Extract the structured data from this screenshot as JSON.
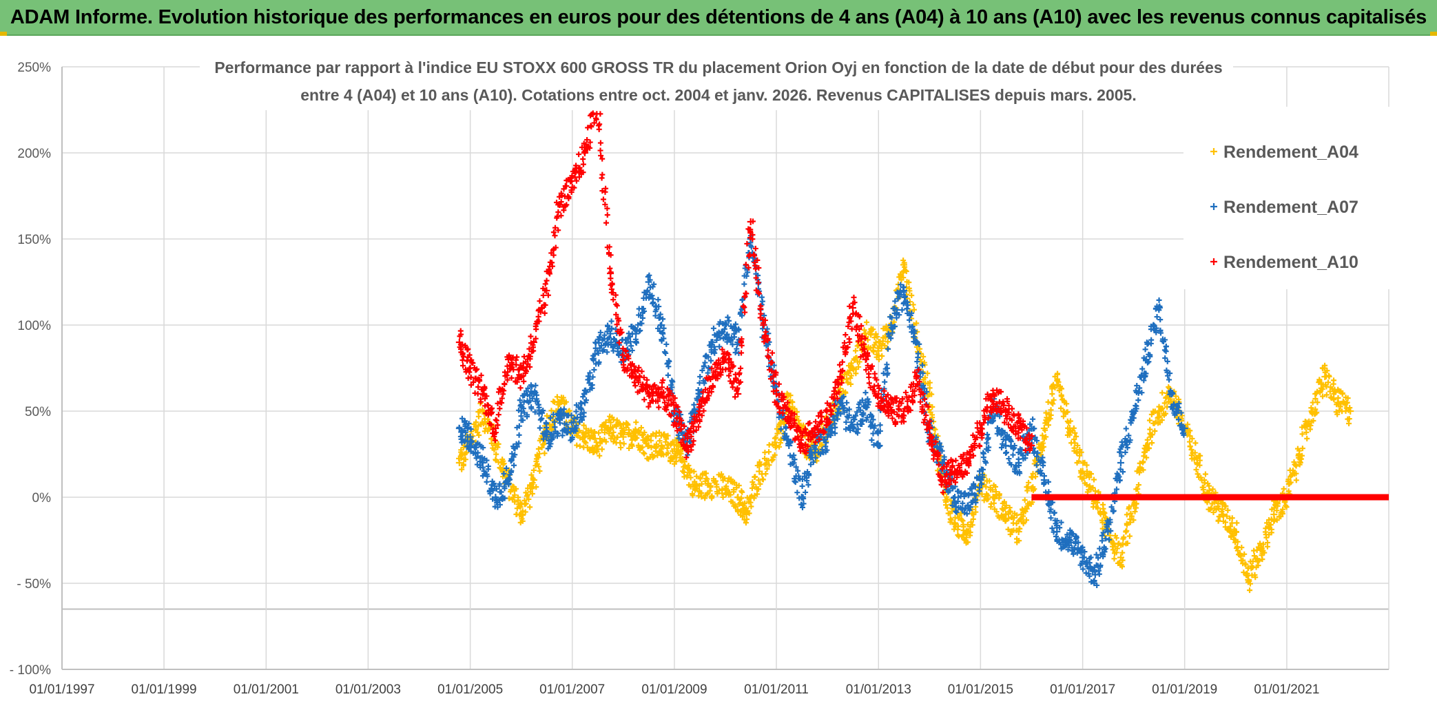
{
  "header": {
    "title": "ADAM Informe. Evolution historique des performances en euros pour des détentions de 4 ans (A04) à 10 ans (A10) avec les revenus connus capitalisés"
  },
  "chart_data": {
    "type": "scatter",
    "title_line1": "Performance par rapport à l'indice EU STOXX 600 GROSS TR  du placement Orion Oyj en fonction de la date de début pour des durées",
    "title_line2": "entre 4 (A04) et 10 ans (A10). Cotations entre oct. 2004 et janv. 2026. Revenus CAPITALISES depuis mars. 2005.",
    "xlabel": "",
    "ylabel": "",
    "x_ticks": [
      "01/01/1997",
      "01/01/1999",
      "01/01/2001",
      "01/01/2003",
      "01/01/2005",
      "01/01/2007",
      "01/01/2009",
      "01/01/2011",
      "01/01/2013",
      "01/01/2015",
      "01/01/2017",
      "01/01/2019",
      "01/01/2021"
    ],
    "xlim": [
      "1997-01-01",
      "2023-01-01"
    ],
    "y_ticks": [
      {
        "value": 250,
        "label": "250%"
      },
      {
        "value": 200,
        "label": "200%"
      },
      {
        "value": 150,
        "label": "150%"
      },
      {
        "value": 100,
        "label": "100%"
      },
      {
        "value": 50,
        "label": "50%"
      },
      {
        "value": 0,
        "label": "0%"
      },
      {
        "value": -50,
        "label": "- 50%"
      },
      {
        "value": -100,
        "label": "- 100%"
      }
    ],
    "ylim": [
      -100,
      250
    ],
    "grid": true,
    "legend_position": "top-right",
    "series": [
      {
        "name": "Rendement_A04",
        "color": "#ffc000",
        "points": [
          [
            "2004-10-15",
            20
          ],
          [
            "2005-01-01",
            32
          ],
          [
            "2005-04-01",
            50
          ],
          [
            "2005-07-01",
            30
          ],
          [
            "2005-10-01",
            8
          ],
          [
            "2006-01-01",
            -10
          ],
          [
            "2006-04-01",
            10
          ],
          [
            "2006-07-01",
            40
          ],
          [
            "2006-10-01",
            55
          ],
          [
            "2007-01-01",
            40
          ],
          [
            "2007-04-01",
            35
          ],
          [
            "2007-07-01",
            30
          ],
          [
            "2007-10-01",
            40
          ],
          [
            "2008-01-01",
            35
          ],
          [
            "2008-04-01",
            38
          ],
          [
            "2008-07-01",
            30
          ],
          [
            "2008-10-01",
            30
          ],
          [
            "2009-01-01",
            28
          ],
          [
            "2009-03-01",
            22
          ],
          [
            "2009-06-01",
            5
          ],
          [
            "2009-09-01",
            8
          ],
          [
            "2010-01-01",
            5
          ],
          [
            "2010-04-01",
            0
          ],
          [
            "2010-06-01",
            -10
          ],
          [
            "2010-09-01",
            15
          ],
          [
            "2011-01-01",
            30
          ],
          [
            "2011-04-01",
            55
          ],
          [
            "2011-07-01",
            35
          ],
          [
            "2011-10-01",
            25
          ],
          [
            "2012-01-01",
            40
          ],
          [
            "2012-04-01",
            60
          ],
          [
            "2012-07-01",
            75
          ],
          [
            "2012-10-01",
            95
          ],
          [
            "2013-01-01",
            85
          ],
          [
            "2013-04-01",
            100
          ],
          [
            "2013-07-01",
            135
          ],
          [
            "2013-10-01",
            90
          ],
          [
            "2014-01-01",
            60
          ],
          [
            "2014-04-01",
            10
          ],
          [
            "2014-07-01",
            -15
          ],
          [
            "2014-10-01",
            -20
          ],
          [
            "2015-01-01",
            10
          ],
          [
            "2015-04-01",
            0
          ],
          [
            "2015-07-01",
            -10
          ],
          [
            "2015-10-01",
            -20
          ],
          [
            "2016-01-01",
            5
          ],
          [
            "2016-04-01",
            40
          ],
          [
            "2016-07-01",
            65
          ],
          [
            "2016-10-01",
            40
          ],
          [
            "2017-01-01",
            15
          ],
          [
            "2017-04-01",
            0
          ],
          [
            "2017-07-01",
            -20
          ],
          [
            "2017-10-01",
            -35
          ],
          [
            "2018-01-01",
            -5
          ],
          [
            "2018-04-01",
            30
          ],
          [
            "2018-07-01",
            50
          ],
          [
            "2018-10-01",
            60
          ],
          [
            "2019-01-01",
            40
          ],
          [
            "2019-04-01",
            20
          ],
          [
            "2019-07-01",
            0
          ],
          [
            "2019-10-01",
            -10
          ],
          [
            "2020-01-01",
            -20
          ],
          [
            "2020-04-01",
            -48
          ],
          [
            "2020-07-01",
            -30
          ],
          [
            "2020-10-01",
            -10
          ],
          [
            "2021-01-01",
            0
          ],
          [
            "2021-04-01",
            25
          ],
          [
            "2021-07-01",
            50
          ],
          [
            "2021-10-01",
            70
          ],
          [
            "2022-01-01",
            55
          ],
          [
            "2022-04-01",
            50
          ]
        ]
      },
      {
        "name": "Rendement_A07",
        "color": "#1f6fbf",
        "points": [
          [
            "2004-10-15",
            40
          ],
          [
            "2005-01-01",
            35
          ],
          [
            "2005-04-01",
            20
          ],
          [
            "2005-07-01",
            0
          ],
          [
            "2005-10-01",
            10
          ],
          [
            "2006-01-01",
            50
          ],
          [
            "2006-04-01",
            60
          ],
          [
            "2006-07-01",
            35
          ],
          [
            "2006-10-01",
            45
          ],
          [
            "2007-01-01",
            40
          ],
          [
            "2007-04-01",
            55
          ],
          [
            "2007-07-01",
            85
          ],
          [
            "2007-10-01",
            95
          ],
          [
            "2008-01-01",
            85
          ],
          [
            "2008-04-01",
            95
          ],
          [
            "2008-07-01",
            125
          ],
          [
            "2008-10-01",
            100
          ],
          [
            "2009-01-01",
            50
          ],
          [
            "2009-04-01",
            30
          ],
          [
            "2009-07-01",
            60
          ],
          [
            "2009-10-01",
            90
          ],
          [
            "2010-01-01",
            100
          ],
          [
            "2010-04-01",
            90
          ],
          [
            "2010-07-01",
            150
          ],
          [
            "2010-10-01",
            100
          ],
          [
            "2011-01-01",
            60
          ],
          [
            "2011-04-01",
            30
          ],
          [
            "2011-07-01",
            0
          ],
          [
            "2011-10-01",
            30
          ],
          [
            "2012-01-01",
            35
          ],
          [
            "2012-04-01",
            55
          ],
          [
            "2012-07-01",
            40
          ],
          [
            "2012-10-01",
            55
          ],
          [
            "2013-01-01",
            30
          ],
          [
            "2013-04-01",
            100
          ],
          [
            "2013-07-01",
            120
          ],
          [
            "2013-10-01",
            90
          ],
          [
            "2014-01-01",
            40
          ],
          [
            "2014-04-01",
            20
          ],
          [
            "2014-07-01",
            0
          ],
          [
            "2014-10-01",
            -5
          ],
          [
            "2015-01-01",
            10
          ],
          [
            "2015-04-01",
            50
          ],
          [
            "2015-07-01",
            30
          ],
          [
            "2015-10-01",
            20
          ],
          [
            "2016-01-01",
            40
          ],
          [
            "2016-04-01",
            10
          ],
          [
            "2016-07-01",
            -20
          ],
          [
            "2016-10-01",
            -25
          ],
          [
            "2017-01-01",
            -35
          ],
          [
            "2017-04-01",
            -45
          ],
          [
            "2017-07-01",
            -20
          ],
          [
            "2017-10-01",
            20
          ],
          [
            "2018-01-01",
            50
          ],
          [
            "2018-04-01",
            80
          ],
          [
            "2018-07-01",
            110
          ],
          [
            "2018-10-01",
            60
          ],
          [
            "2019-01-01",
            40
          ]
        ]
      },
      {
        "name": "Rendement_A10",
        "color": "#ff0000",
        "points": [
          [
            "2004-10-15",
            90
          ],
          [
            "2005-01-01",
            75
          ],
          [
            "2005-04-01",
            60
          ],
          [
            "2005-07-01",
            40
          ],
          [
            "2005-10-01",
            80
          ],
          [
            "2006-01-01",
            70
          ],
          [
            "2006-04-01",
            90
          ],
          [
            "2006-07-01",
            120
          ],
          [
            "2006-10-01",
            170
          ],
          [
            "2007-01-01",
            180
          ],
          [
            "2007-04-01",
            200
          ],
          [
            "2007-07-01",
            230
          ],
          [
            "2007-10-01",
            130
          ],
          [
            "2008-01-01",
            80
          ],
          [
            "2008-04-01",
            70
          ],
          [
            "2008-07-01",
            60
          ],
          [
            "2008-10-01",
            60
          ],
          [
            "2009-01-01",
            50
          ],
          [
            "2009-04-01",
            30
          ],
          [
            "2009-07-01",
            50
          ],
          [
            "2009-10-01",
            70
          ],
          [
            "2010-01-01",
            80
          ],
          [
            "2010-04-01",
            60
          ],
          [
            "2010-07-01",
            160
          ],
          [
            "2010-10-01",
            100
          ],
          [
            "2011-01-01",
            60
          ],
          [
            "2011-04-01",
            50
          ],
          [
            "2011-07-01",
            30
          ],
          [
            "2011-10-01",
            40
          ],
          [
            "2012-01-01",
            45
          ],
          [
            "2012-04-01",
            70
          ],
          [
            "2012-07-01",
            110
          ],
          [
            "2012-10-01",
            80
          ],
          [
            "2013-01-01",
            60
          ],
          [
            "2013-04-01",
            50
          ],
          [
            "2013-07-01",
            50
          ],
          [
            "2013-10-01",
            70
          ],
          [
            "2014-01-01",
            40
          ],
          [
            "2014-04-01",
            10
          ],
          [
            "2014-07-01",
            15
          ],
          [
            "2014-10-01",
            20
          ],
          [
            "2015-01-01",
            40
          ],
          [
            "2015-04-01",
            60
          ],
          [
            "2015-07-01",
            50
          ],
          [
            "2015-10-01",
            40
          ],
          [
            "2016-01-01",
            30
          ]
        ],
        "flat_segment": {
          "from": "2016-01-01",
          "to": "2023-01-01",
          "value": 0
        }
      }
    ]
  }
}
